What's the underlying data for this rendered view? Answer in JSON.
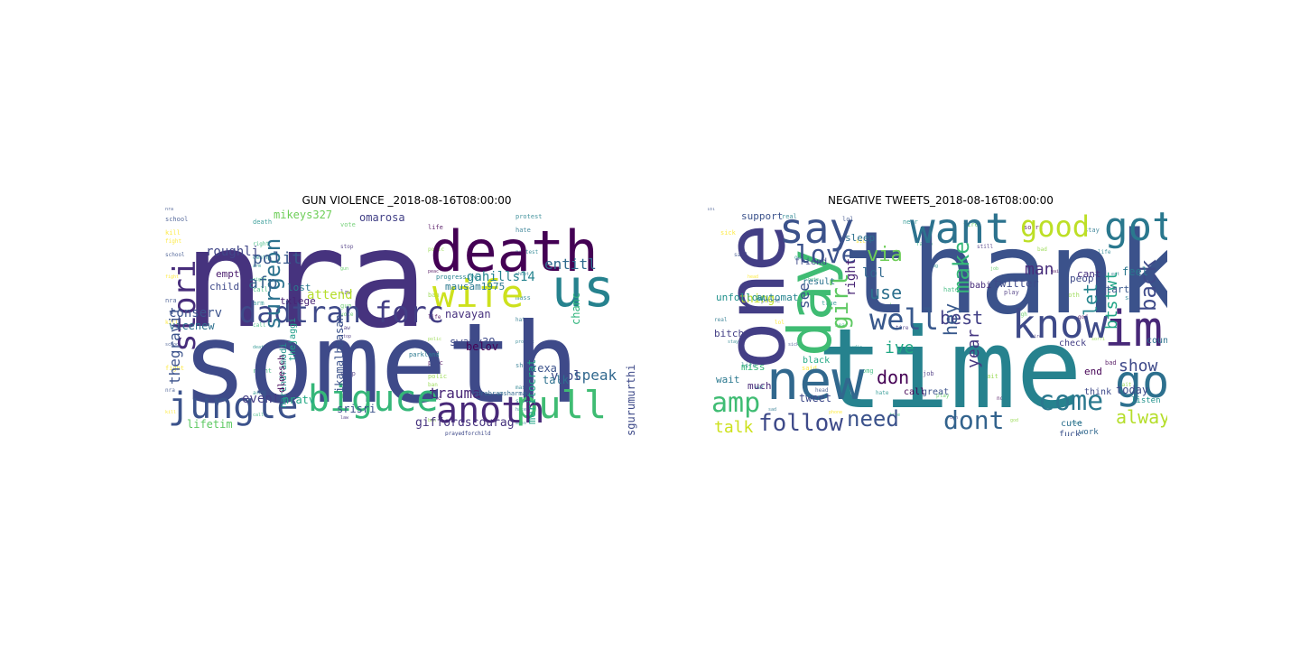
{
  "panels": [
    {
      "title": "GUN VIOLENCE _2018-08-16T08:00:00",
      "words": [
        {
          "t": "nra",
          "c": "#46337e"
        },
        {
          "t": "someth",
          "c": "#3e4a89"
        },
        {
          "t": "death",
          "c": "#440154"
        },
        {
          "t": "us",
          "c": "#26828e"
        },
        {
          "t": "wife",
          "c": "#cde11d"
        },
        {
          "t": "pull",
          "c": "#3fbc73"
        },
        {
          "t": "jungle",
          "c": "#3b528b"
        },
        {
          "t": "biguce",
          "c": "#35b779"
        },
        {
          "t": "anoth",
          "c": "#482878"
        },
        {
          "t": "dadtran",
          "c": "#3e4989"
        },
        {
          "t": "forc",
          "c": "#433e85"
        },
        {
          "t": "stori",
          "c": "#472d7b"
        },
        {
          "t": "surgeon",
          "c": "#2c728e"
        },
        {
          "t": "gahills14",
          "c": "#25838e"
        },
        {
          "t": "entitl",
          "c": "#306a8e"
        },
        {
          "t": "mikeys327",
          "c": "#6ece58"
        },
        {
          "t": "omarosa",
          "c": "#424086"
        },
        {
          "t": "roughli",
          "c": "#404688"
        },
        {
          "t": "polit",
          "c": "#38588c"
        },
        {
          "t": "afp",
          "c": "#33638d"
        },
        {
          "t": "lost",
          "c": "#2a788e"
        },
        {
          "t": "txlege",
          "c": "#482475"
        },
        {
          "t": "attend",
          "c": "#b5de2b"
        },
        {
          "t": "conserv",
          "c": "#3b528b"
        },
        {
          "t": "vicenew",
          "c": "#2d708e"
        },
        {
          "t": "empt",
          "c": "#481a6c"
        },
        {
          "t": "child",
          "c": "#3e4989"
        },
        {
          "t": "mausam1975",
          "c": "#2a788e"
        },
        {
          "t": "navayan",
          "c": "#46307e"
        },
        {
          "t": "swamy39",
          "c": "#3e4a89"
        },
        {
          "t": "thegravit",
          "c": "#3b528b"
        },
        {
          "t": "speak",
          "c": "#31688e"
        },
        {
          "t": "trauma",
          "c": "#482576"
        },
        {
          "t": "belov",
          "c": "#440154"
        },
        {
          "t": "chanc",
          "c": "#2fb47c"
        },
        {
          "t": "meritocrat",
          "c": "#20a486"
        },
        {
          "t": "texa",
          "c": "#3b528b"
        },
        {
          "t": "viol",
          "c": "#3e4989"
        },
        {
          "t": "talk",
          "c": "#2d708e"
        },
        {
          "t": "event",
          "c": "#433e85"
        },
        {
          "t": "nratv",
          "c": "#22a884"
        },
        {
          "t": "srisri",
          "c": "#3b528b"
        },
        {
          "t": "giffordscourag",
          "c": "#46337e"
        },
        {
          "t": "sgurumurthi",
          "c": "#3e4a89"
        },
        {
          "t": "lifetim",
          "c": "#5ec962"
        },
        {
          "t": "narendramodi",
          "c": "#21918c"
        },
        {
          "t": "thejaggi",
          "c": "#1f9e89"
        },
        {
          "t": "dloesch",
          "c": "#440154"
        },
        {
          "t": "ikamalhaasan",
          "c": "#3b528b"
        },
        {
          "t": "parkland",
          "c": "#2a788e"
        },
        {
          "t": "progressive",
          "c": "#25838e"
        },
        {
          "t": "prayedforchild",
          "c": "#3e4989"
        },
        {
          "t": "drabramsharma",
          "c": "#31688e"
        }
      ]
    },
    {
      "title": "NEGATIVE TWEETS_2018-08-16T08:00:00",
      "words": [
        {
          "t": "thank",
          "c": "#3b528b"
        },
        {
          "t": "time",
          "c": "#26828e"
        },
        {
          "t": "one",
          "c": "#433e85"
        },
        {
          "t": "want",
          "c": "#2c728e"
        },
        {
          "t": "good",
          "c": "#bddf26"
        },
        {
          "t": "got",
          "c": "#2a788e"
        },
        {
          "t": "say",
          "c": "#3b528b"
        },
        {
          "t": "day",
          "c": "#3fbc73"
        },
        {
          "t": "know",
          "c": "#3e4a89"
        },
        {
          "t": "im",
          "c": "#482878"
        },
        {
          "t": "new",
          "c": "#31688e"
        },
        {
          "t": "go",
          "c": "#2d708e"
        },
        {
          "t": "love",
          "c": "#3b528b"
        },
        {
          "t": "well",
          "c": "#38588c"
        },
        {
          "t": "via",
          "c": "#6ece58"
        },
        {
          "t": "man",
          "c": "#472c7a"
        },
        {
          "t": "back",
          "c": "#3e4a89"
        },
        {
          "t": "girl",
          "c": "#5ec962"
        },
        {
          "t": "best",
          "c": "#424086"
        },
        {
          "t": "make",
          "c": "#35b779"
        },
        {
          "t": "use",
          "c": "#2d708e"
        },
        {
          "t": "let",
          "c": "#25848e"
        },
        {
          "t": "btstwt",
          "c": "#20a486"
        },
        {
          "t": "amp",
          "c": "#3fbc73"
        },
        {
          "t": "see",
          "c": "#3b528b"
        },
        {
          "t": "hey",
          "c": "#38588c"
        },
        {
          "t": "ive",
          "c": "#22a884"
        },
        {
          "t": "year",
          "c": "#453781"
        },
        {
          "t": "don",
          "c": "#440154"
        },
        {
          "t": "show",
          "c": "#3e4989"
        },
        {
          "t": "come",
          "c": "#2a788e"
        },
        {
          "t": "alway",
          "c": "#b5de2b"
        },
        {
          "t": "follow",
          "c": "#3e4a89"
        },
        {
          "t": "need",
          "c": "#3b528b"
        },
        {
          "t": "dont",
          "c": "#33638d"
        },
        {
          "t": "talk",
          "c": "#cde11d"
        },
        {
          "t": "lol",
          "c": "#31688e"
        },
        {
          "t": "right",
          "c": "#482475"
        },
        {
          "t": "thing",
          "c": "#bddf26"
        },
        {
          "t": "twitter",
          "c": "#3e4a89"
        },
        {
          "t": "babi",
          "c": "#472c7a"
        },
        {
          "t": "result",
          "c": "#2c728e"
        },
        {
          "t": "unfollow",
          "c": "#21918c"
        },
        {
          "t": "automat",
          "c": "#25838e"
        },
        {
          "t": "check",
          "c": "#433e85"
        },
        {
          "t": "support",
          "c": "#3b528b"
        },
        {
          "t": "sleep",
          "c": "#2d708e"
        },
        {
          "t": "friend",
          "c": "#3e4989"
        },
        {
          "t": "peopl",
          "c": "#3e4a89"
        },
        {
          "t": "feel",
          "c": "#2a788e"
        },
        {
          "t": "cant",
          "c": "#46307e"
        },
        {
          "t": "start",
          "c": "#38588c"
        },
        {
          "t": "great",
          "c": "#3b528b"
        },
        {
          "t": "call",
          "c": "#440154"
        },
        {
          "t": "bitch",
          "c": "#433e85"
        },
        {
          "t": "black",
          "c": "#22a884"
        },
        {
          "t": "tweet",
          "c": "#3e4989"
        },
        {
          "t": "wait",
          "c": "#2a788e"
        },
        {
          "t": "much",
          "c": "#482878"
        },
        {
          "t": "miss",
          "c": "#35b779"
        },
        {
          "t": "end",
          "c": "#440154"
        },
        {
          "t": "today",
          "c": "#3e4a89"
        },
        {
          "t": "cute",
          "c": "#2d708e"
        },
        {
          "t": "work",
          "c": "#31688e"
        },
        {
          "t": "fuck",
          "c": "#3b528b"
        },
        {
          "t": "listen",
          "c": "#21918c"
        },
        {
          "t": "think",
          "c": "#3e4989"
        },
        {
          "t": "countri",
          "c": "#2c728e"
        }
      ]
    }
  ]
}
